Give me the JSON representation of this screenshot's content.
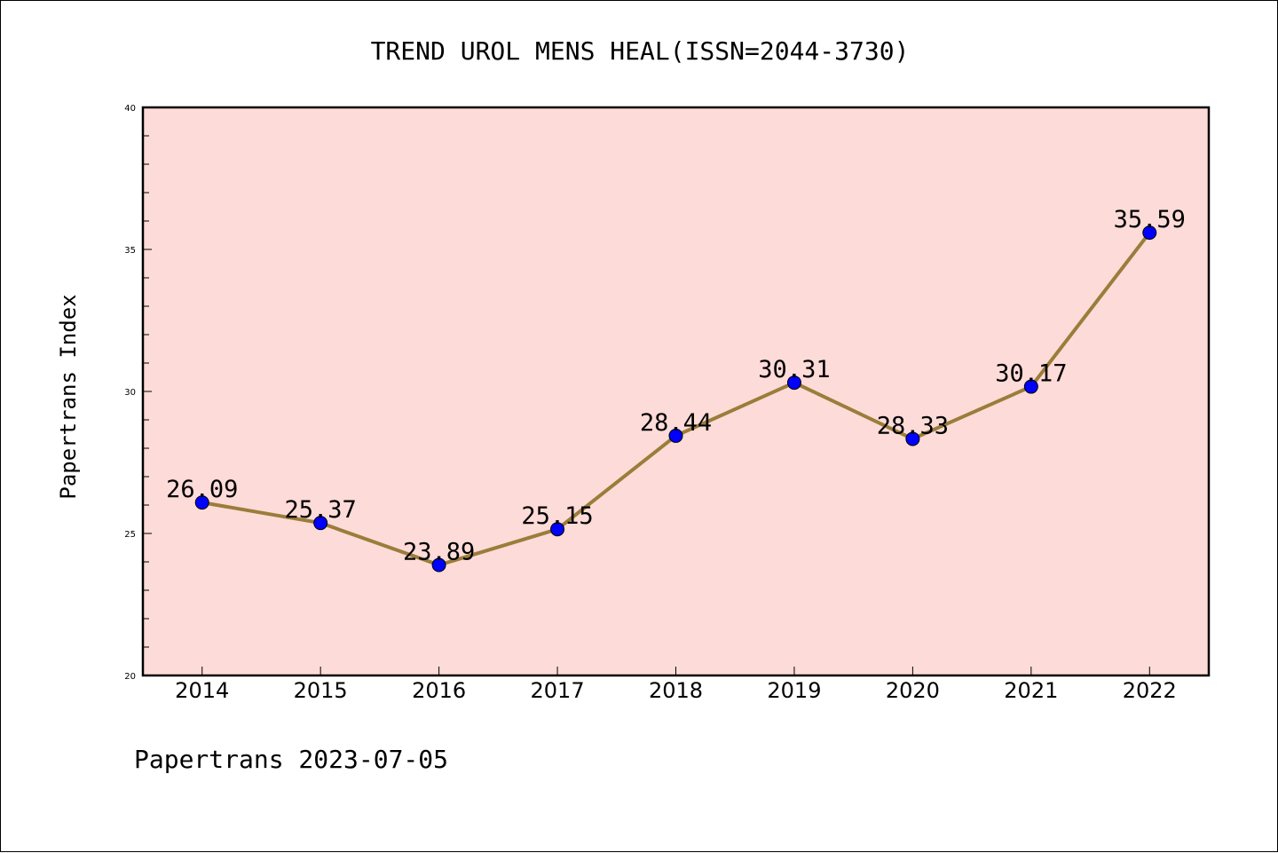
{
  "chart_data": {
    "type": "line",
    "title": "TREND UROL MENS HEAL(ISSN=2044-3730)",
    "ylabel": "Papertrans Index",
    "xlabel": "",
    "categories": [
      "2014",
      "2015",
      "2016",
      "2017",
      "2018",
      "2019",
      "2020",
      "2021",
      "2022"
    ],
    "values": [
      26.09,
      25.37,
      23.89,
      25.15,
      28.44,
      30.31,
      28.33,
      30.17,
      35.59
    ],
    "data_labels": [
      "26.09",
      "25.37",
      "23.89",
      "25.15",
      "28.44",
      "30.31",
      "28.33",
      "30.17",
      "35.59"
    ],
    "ylim": [
      20,
      40
    ],
    "yticks": [
      20,
      25,
      30,
      35,
      40
    ],
    "grid": false,
    "colors": {
      "line": "#9a7d3a",
      "marker": "#0000ff",
      "plot_background": "#fddbd8"
    }
  },
  "footer": {
    "text": "Papertrans 2023-07-05"
  }
}
